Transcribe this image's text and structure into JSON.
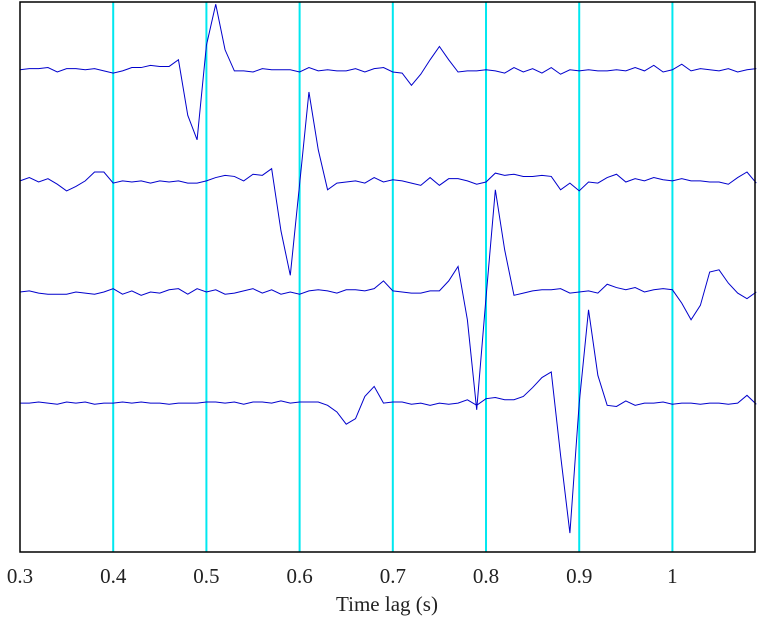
{
  "chart_data": {
    "type": "line",
    "x_label": "Time lag (s)",
    "xlim": [
      0.3,
      1.0886
    ],
    "ylim": [
      -0.34,
      4.61
    ],
    "xticks": [
      0.3,
      0.4,
      0.5,
      0.6,
      0.7,
      0.8,
      0.9,
      1
    ],
    "grid": true,
    "grid_color": "#00e8f0",
    "x": [
      0.3,
      0.31,
      0.32,
      0.33,
      0.34,
      0.35,
      0.36,
      0.37,
      0.38,
      0.39,
      0.4,
      0.41,
      0.42,
      0.43,
      0.44,
      0.45,
      0.46,
      0.47,
      0.48,
      0.49,
      0.5,
      0.51,
      0.52,
      0.53,
      0.54,
      0.55,
      0.56,
      0.57,
      0.58,
      0.59,
      0.6,
      0.61,
      0.62,
      0.63,
      0.64,
      0.65,
      0.66,
      0.67,
      0.68,
      0.69,
      0.7,
      0.71,
      0.72,
      0.73,
      0.74,
      0.75,
      0.76,
      0.77,
      0.78,
      0.79,
      0.8,
      0.81,
      0.82,
      0.83,
      0.84,
      0.85,
      0.86,
      0.87,
      0.88,
      0.89,
      0.9,
      0.91,
      0.92,
      0.93,
      0.94,
      0.95,
      0.96,
      0.97,
      0.98,
      0.99,
      1.0,
      1.01,
      1.02,
      1.03,
      1.04,
      1.05,
      1.06,
      1.07,
      1.08,
      1.09
    ],
    "series": [
      {
        "color": "#0000cc",
        "values": [
          4.0,
          4.01,
          4.01,
          4.02,
          3.98,
          4.01,
          4.01,
          4.0,
          4.01,
          3.99,
          3.97,
          3.99,
          4.02,
          4.02,
          4.04,
          4.03,
          4.03,
          4.09,
          3.59,
          3.37,
          4.22,
          4.59,
          4.18,
          3.99,
          3.99,
          3.98,
          4.01,
          4.0,
          4.0,
          4.0,
          3.98,
          4.02,
          3.99,
          4.0,
          3.99,
          3.99,
          4.01,
          3.98,
          4.01,
          4.02,
          3.98,
          3.97,
          3.86,
          3.96,
          4.09,
          4.21,
          4.09,
          3.98,
          3.99,
          3.99,
          4.0,
          3.99,
          3.97,
          4.02,
          3.98,
          4.01,
          3.97,
          4.02,
          3.96,
          4.0,
          3.99,
          4.0,
          3.99,
          3.99,
          4.0,
          3.99,
          4.02,
          3.99,
          4.04,
          3.98,
          4.0,
          4.05,
          3.99,
          4.01,
          4.0,
          3.99,
          4.01,
          3.98,
          4.0,
          4.01
        ]
      },
      {
        "color": "#0000cc",
        "values": [
          3.0,
          3.03,
          2.99,
          3.02,
          2.97,
          2.91,
          2.95,
          3.0,
          3.08,
          3.08,
          2.98,
          3.0,
          2.99,
          3.0,
          2.98,
          3.0,
          2.99,
          3.0,
          2.98,
          2.98,
          3.0,
          3.03,
          3.05,
          3.04,
          3.0,
          3.06,
          3.05,
          3.11,
          2.55,
          2.15,
          2.97,
          3.8,
          3.28,
          2.92,
          2.98,
          2.99,
          3.0,
          2.98,
          3.03,
          2.99,
          3.01,
          3.0,
          2.98,
          2.96,
          3.03,
          2.96,
          3.02,
          3.02,
          3.0,
          2.97,
          2.99,
          3.07,
          3.05,
          3.06,
          3.04,
          3.04,
          3.05,
          3.04,
          2.92,
          2.98,
          2.91,
          2.99,
          2.98,
          3.03,
          3.06,
          2.99,
          3.02,
          3.0,
          3.03,
          3.01,
          3.0,
          3.02,
          3.0,
          3.0,
          2.99,
          2.99,
          2.97,
          3.03,
          3.08,
          2.98
        ]
      },
      {
        "color": "#0000cc",
        "values": [
          2.0,
          2.01,
          1.99,
          1.98,
          1.98,
          1.98,
          2.0,
          1.99,
          1.98,
          2.0,
          2.03,
          1.98,
          2.01,
          1.97,
          2.0,
          1.99,
          2.02,
          2.03,
          1.98,
          2.03,
          2.0,
          2.02,
          1.98,
          1.99,
          2.01,
          2.03,
          1.99,
          2.02,
          1.98,
          2.0,
          1.98,
          2.01,
          2.02,
          2.01,
          1.99,
          2.02,
          2.02,
          2.01,
          2.03,
          2.1,
          2.01,
          2.0,
          1.99,
          1.99,
          2.01,
          2.01,
          2.1,
          2.23,
          1.75,
          0.94,
          1.95,
          2.92,
          2.38,
          1.97,
          1.99,
          2.01,
          2.02,
          2.02,
          2.03,
          1.99,
          2.0,
          2.01,
          1.99,
          2.07,
          2.04,
          2.02,
          2.04,
          2.0,
          2.02,
          2.03,
          2.02,
          1.9,
          1.75,
          1.88,
          2.18,
          2.2,
          2.08,
          1.99,
          1.94,
          2.0
        ]
      },
      {
        "color": "#0000cc",
        "values": [
          1.0,
          1.0,
          1.01,
          1.0,
          0.99,
          1.01,
          1.0,
          1.01,
          0.99,
          1.0,
          1.0,
          1.01,
          1.0,
          1.01,
          1.0,
          1.0,
          0.99,
          1.0,
          1.0,
          1.0,
          1.01,
          1.01,
          1.0,
          1.01,
          0.99,
          1.01,
          1.01,
          1.0,
          1.02,
          1.0,
          1.01,
          1.01,
          1.01,
          0.98,
          0.92,
          0.81,
          0.86,
          1.06,
          1.15,
          1.0,
          1.01,
          1.01,
          0.99,
          1.0,
          0.98,
          1.0,
          0.99,
          1.0,
          1.03,
          0.98,
          1.04,
          1.05,
          1.03,
          1.03,
          1.06,
          1.14,
          1.23,
          1.28,
          0.53,
          -0.17,
          1.0,
          1.84,
          1.25,
          0.98,
          0.97,
          1.02,
          0.98,
          1.0,
          1.0,
          1.01,
          0.99,
          1.0,
          1.0,
          0.99,
          1.0,
          1.0,
          0.99,
          1.0,
          1.07,
          0.99
        ]
      }
    ]
  }
}
